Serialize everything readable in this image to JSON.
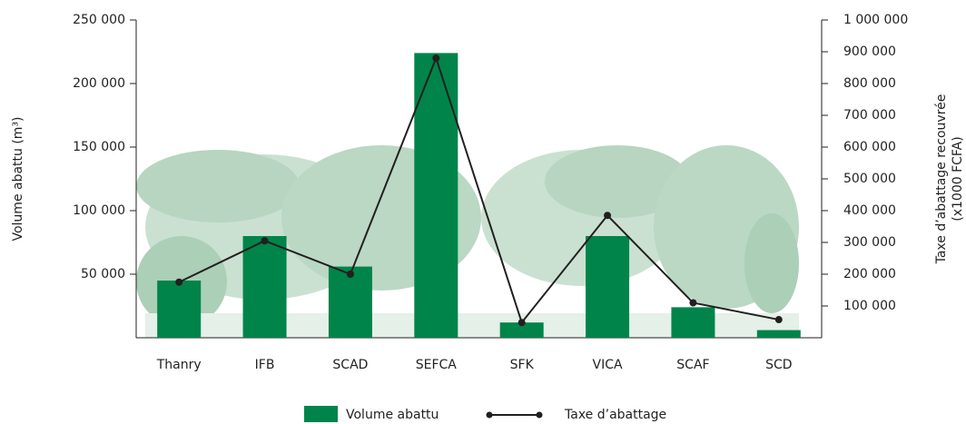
{
  "chart_data": {
    "type": "bar_line",
    "y_label": "Volume abattu (m³)",
    "y2_label": [
      "Taxe d’abattage recouvrée",
      "(x1000 FCFA)"
    ],
    "categories": [
      "Thanry",
      "IFB",
      "SCAD",
      "SEFCA",
      "SFK",
      "VICA",
      "SCAF",
      "SCD"
    ],
    "series": [
      {
        "name": "Volume abattu",
        "type": "bar",
        "color": "#00844a",
        "values": [
          45000,
          80000,
          56000,
          224000,
          12000,
          80000,
          24000,
          6000
        ]
      },
      {
        "name": "Taxe d’abattage",
        "type": "line",
        "axis": "y2",
        "color": "#231f20",
        "values": [
          175000,
          305000,
          200000,
          880000,
          48000,
          385000,
          110000,
          57000
        ]
      }
    ],
    "ylim": [
      0,
      250000
    ],
    "yticks": [
      {
        "value": 50000,
        "label": "50 000"
      },
      {
        "value": 100000,
        "label": "100 000"
      },
      {
        "value": 150000,
        "label": "150 000"
      },
      {
        "value": 200000,
        "label": "200 000"
      },
      {
        "value": 250000,
        "label": "250 000"
      }
    ],
    "y2lim": [
      0,
      1000000
    ],
    "y2ticks": [
      {
        "value": 100000,
        "label": "100 000"
      },
      {
        "value": 200000,
        "label": "200 000"
      },
      {
        "value": 300000,
        "label": "300 000"
      },
      {
        "value": 400000,
        "label": "400 000"
      },
      {
        "value": 500000,
        "label": "500 000"
      },
      {
        "value": 600000,
        "label": "600 000"
      },
      {
        "value": 700000,
        "label": "700 000"
      },
      {
        "value": 800000,
        "label": "800 000"
      },
      {
        "value": 900000,
        "label": "900 000"
      },
      {
        "value": 1000000,
        "label": "1 000 000"
      }
    ],
    "grid": false
  }
}
